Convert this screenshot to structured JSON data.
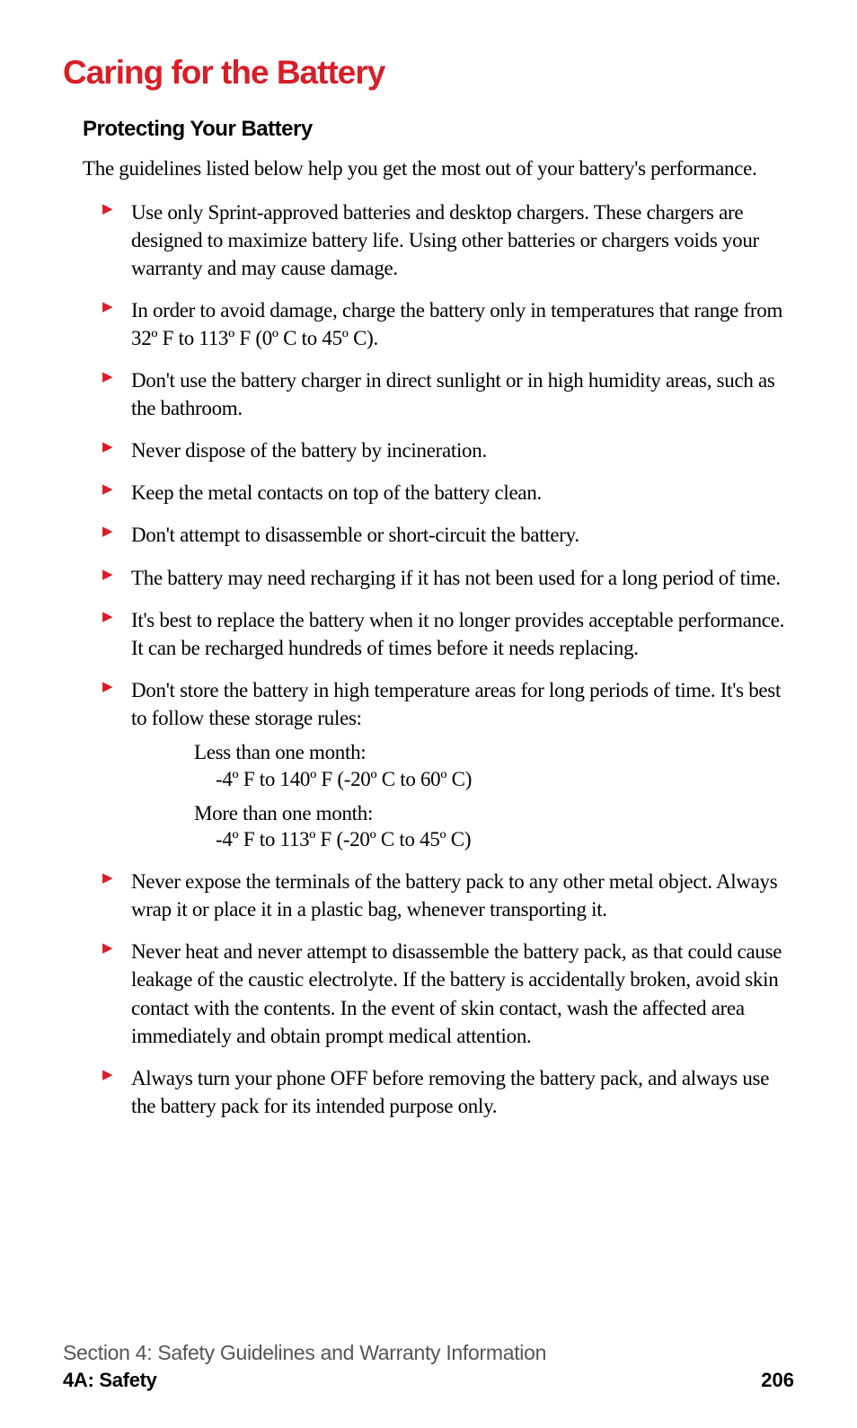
{
  "title": "Caring for the Battery",
  "subtitle": "Protecting Your Battery",
  "intro": "The guidelines listed below help you get the most out of your battery's performance.",
  "bullets": [
    "Use only Sprint-approved batteries and desktop chargers. These chargers are designed to maximize battery life. Using other batteries or chargers voids your warranty and may cause damage.",
    "In order to avoid damage, charge the battery only in temperatures that range from 32º F to 113º F (0º C to 45º C).",
    "Don't use the battery charger in direct sunlight or in high humidity areas, such as the bathroom.",
    "Never dispose of the battery by incineration.",
    "Keep the metal contacts on top of the battery clean.",
    "Don't attempt to disassemble or short-circuit the battery.",
    "The battery may need recharging if it has not been used for a long period of time.",
    "It's best to replace the battery when it no longer provides acceptable performance. It can be recharged hundreds of times before it needs replacing.",
    "Don't store the battery in high temperature areas for long periods of time. It's best to follow these storage rules:",
    "Never expose the terminals of the battery pack to any other metal object. Always wrap it or place it in a plastic bag, whenever transporting it.",
    "Never heat and never attempt to disassemble the battery pack, as that could cause leakage of the caustic electrolyte. If the battery is accidentally broken, avoid skin contact with the contents. In the event of skin contact, wash the affected area immediately and obtain prompt medical attention.",
    "Always turn your phone OFF before removing the battery pack, and always use the battery pack for its intended purpose only."
  ],
  "storage": {
    "rule1_label": "Less than one month:",
    "rule1_temp": "-4º F to 140º F (-20º C to 60º C)",
    "rule2_label": "More than one month:",
    "rule2_temp": "-4º F to 113º F (-20º C to 45º C)"
  },
  "footer": {
    "section": "Section 4: Safety Guidelines and Warranty Information",
    "sub": "4A: Safety",
    "page": "206"
  },
  "colors": {
    "accent": "#d81e28",
    "text": "#000000",
    "footer_gray": "#555555",
    "background": "#ffffff"
  }
}
